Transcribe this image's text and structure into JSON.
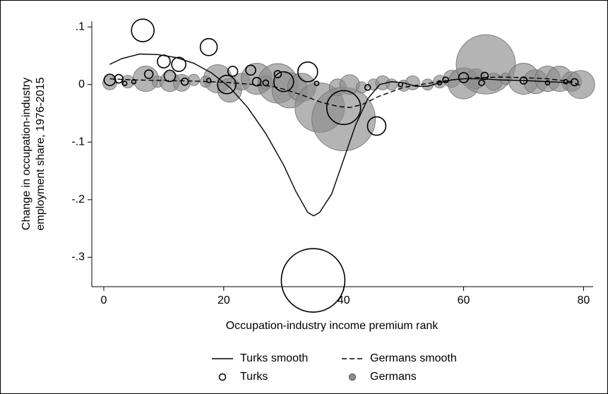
{
  "chart_data": {
    "type": "scatter",
    "x_label": "Occupation-industry income premium rank",
    "y_label": [
      "Change in occupation-industry",
      "employment share, 1976-2015"
    ],
    "xlim": [
      -2,
      81.6
    ],
    "ylim": [
      -0.351,
      0.11
    ],
    "xticks": [
      0,
      20,
      40,
      60,
      80
    ],
    "yticks": [
      {
        "value": 0.1,
        "label": ".1"
      },
      0,
      {
        "value": -0.1,
        "label": "-.1"
      },
      {
        "value": -0.2,
        "label": "-.2"
      },
      {
        "value": -0.3,
        "label": "-.3"
      }
    ],
    "series": [
      {
        "name": "Germans",
        "type": "bubble",
        "fill": true,
        "color": "#8c8c8c",
        "x": [
          1,
          4,
          7,
          9,
          11,
          13,
          15,
          17,
          19,
          21,
          23,
          25.5,
          27,
          29,
          31,
          33,
          36,
          39,
          40,
          41,
          43,
          45,
          46.5,
          48,
          50,
          51.5,
          54,
          56,
          58,
          60,
          62,
          63.7,
          65,
          67,
          70,
          72,
          74,
          76,
          78,
          79.5
        ],
        "values": [
          0.003,
          0.005,
          0.01,
          0.005,
          0.005,
          0.003,
          0.008,
          0.005,
          0.01,
          -0.01,
          0.005,
          0.01,
          0.003,
          0.002,
          -0.01,
          -0.005,
          -0.04,
          -0.005,
          -0.06,
          0,
          -0.005,
          0,
          0.003,
          0,
          -0.002,
          0.003,
          0,
          0.005,
          0.01,
          0.002,
          0.01,
          0.035,
          0.005,
          0.01,
          0.01,
          0.005,
          0.01,
          0.01,
          0.005,
          0
        ],
        "sizes": [
          10,
          9,
          18,
          8,
          14,
          12,
          8,
          8,
          20,
          17,
          12,
          22,
          10,
          28,
          25,
          20,
          35,
          12,
          45,
          14,
          8,
          8,
          10,
          8,
          8,
          10,
          8,
          9,
          12,
          22,
          14,
          42,
          12,
          8,
          22,
          17,
          18,
          18,
          14,
          20
        ]
      },
      {
        "name": "Turks",
        "type": "bubble",
        "fill": false,
        "color": "#000000",
        "x": [
          1,
          2.5,
          3.5,
          5,
          6.5,
          7.5,
          10,
          11,
          12.5,
          13.5,
          17.5,
          17.5,
          20.5,
          21.5,
          24.5,
          25.5,
          27,
          29,
          30,
          34,
          35.5,
          34.9,
          40,
          44,
          45.5,
          49.5,
          56,
          57,
          60,
          63,
          63.5,
          70,
          74,
          77,
          78.5
        ],
        "values": [
          0.008,
          0.01,
          0.002,
          0.005,
          0.094,
          0.018,
          0.04,
          0.015,
          0.035,
          0.005,
          0.007,
          0.065,
          0,
          0.023,
          0.025,
          0.005,
          0.003,
          0.018,
          0.005,
          0.022,
          0.002,
          -0.34,
          -0.04,
          -0.005,
          -0.072,
          0,
          0.003,
          0.008,
          0.012,
          0.003,
          0.015,
          0.007,
          0.003,
          0.005,
          0.004
        ],
        "sizes": [
          8,
          6,
          3,
          3,
          16,
          6,
          9,
          8,
          10,
          5,
          3,
          12,
          13,
          7,
          7,
          6,
          4,
          5,
          14,
          14,
          3,
          45,
          24,
          4,
          13,
          3,
          3,
          4,
          7,
          4,
          5,
          5,
          3,
          3,
          5
        ]
      },
      {
        "name": "Turks smooth",
        "type": "line",
        "dash": false,
        "color": "#000000",
        "x": [
          1,
          3,
          6,
          9,
          12,
          15,
          18,
          21,
          24,
          27,
          30,
          32,
          34,
          35,
          36,
          38,
          40,
          42,
          44,
          46,
          48,
          50,
          52,
          54,
          56,
          58,
          60,
          63,
          66,
          70,
          74,
          78
        ],
        "values": [
          0.035,
          0.045,
          0.053,
          0.052,
          0.047,
          0.037,
          0.02,
          -0.005,
          -0.04,
          -0.085,
          -0.14,
          -0.185,
          -0.222,
          -0.228,
          -0.222,
          -0.19,
          -0.13,
          -0.07,
          -0.025,
          0,
          0.005,
          0.003,
          -0.003,
          -0.003,
          0.003,
          0.008,
          0.01,
          0.01,
          0.008,
          0.007,
          0.005,
          0.003
        ]
      },
      {
        "name": "Germans smooth",
        "type": "line",
        "dash": true,
        "color": "#000000",
        "x": [
          1,
          5,
          10,
          15,
          20,
          25,
          28,
          30,
          33,
          36,
          39,
          41,
          43,
          46,
          50,
          54,
          58,
          62,
          66,
          70,
          74,
          78,
          79.5
        ],
        "values": [
          0.01,
          0.008,
          0.007,
          0.006,
          0.004,
          0,
          -0.003,
          -0.008,
          -0.018,
          -0.03,
          -0.038,
          -0.04,
          -0.035,
          -0.02,
          -0.005,
          0.002,
          0.008,
          0.012,
          0.013,
          0.012,
          0.01,
          0.005,
          -0.002
        ]
      }
    ]
  }
}
